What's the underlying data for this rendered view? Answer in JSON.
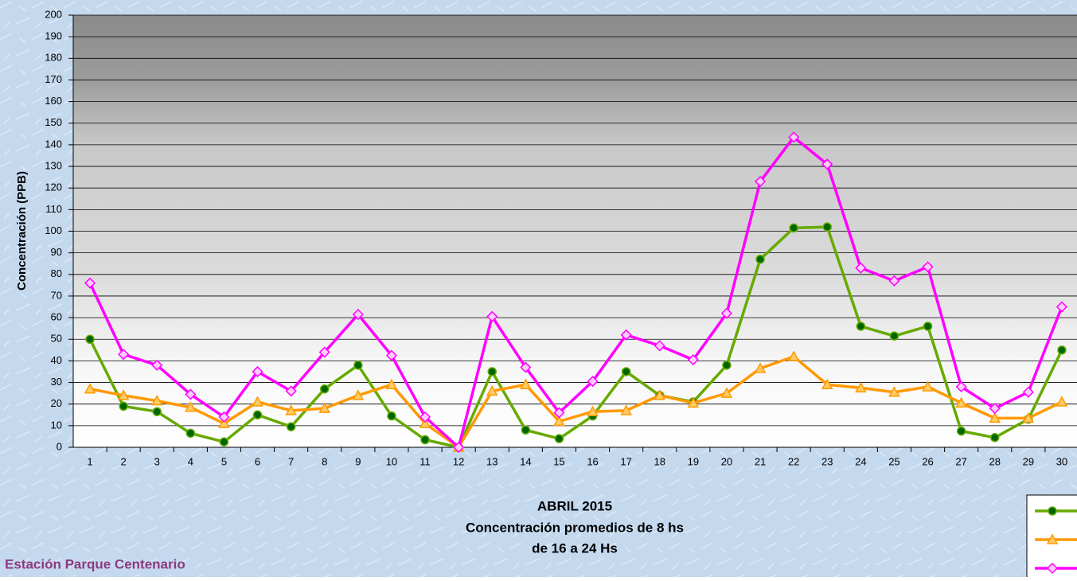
{
  "chart_data": {
    "type": "line",
    "title": "ABRIL 2015",
    "subtitle": [
      "Concentración promedios de 8 hs",
      "de 16 a 24 Hs"
    ],
    "annotation": "Estación Parque Centenario",
    "y_label": "Concentración  (PPB)",
    "categories": [
      "1",
      "2",
      "3",
      "4",
      "5",
      "6",
      "7",
      "8",
      "9",
      "10",
      "11",
      "12",
      "13",
      "14",
      "15",
      "16",
      "17",
      "18",
      "19",
      "20",
      "21",
      "22",
      "23",
      "24",
      "25",
      "26",
      "27",
      "28",
      "29",
      "30"
    ],
    "series": [
      {
        "color": "#66aa00",
        "marker": "circle",
        "values": [
          50,
          19,
          16.5,
          6.5,
          2.5,
          15,
          9.5,
          27,
          38,
          14.5,
          3.5,
          0,
          35,
          8,
          4,
          14.5,
          35,
          24,
          21,
          38,
          87,
          101.5,
          102,
          56,
          51.5,
          56,
          7.5,
          4.5,
          13,
          45
        ]
      },
      {
        "color": "#ff9900",
        "marker": "triangle",
        "values": [
          27,
          24,
          21.5,
          18.5,
          11,
          21,
          17,
          18,
          24,
          29,
          11,
          0,
          26,
          29,
          12,
          16.5,
          17,
          24,
          20.5,
          25,
          36.5,
          42,
          29,
          27.5,
          25.5,
          28,
          20.5,
          13.5,
          13.5,
          21
        ]
      },
      {
        "color": "#ff00ff",
        "marker": "diamond",
        "values": [
          76,
          43,
          38,
          24.5,
          14,
          35,
          26,
          44,
          61.5,
          42.5,
          14,
          0,
          60.5,
          37,
          16,
          30.5,
          52,
          47,
          40.5,
          62,
          123,
          143.5,
          131,
          83,
          77,
          83.5,
          28,
          18,
          25.5,
          65
        ]
      }
    ],
    "ylim": [
      0,
      200
    ],
    "yticks": [
      0,
      10,
      20,
      30,
      40,
      50,
      60,
      70,
      80,
      90,
      100,
      110,
      120,
      130,
      140,
      150,
      160,
      170,
      180,
      190,
      200
    ],
    "grid": true
  }
}
